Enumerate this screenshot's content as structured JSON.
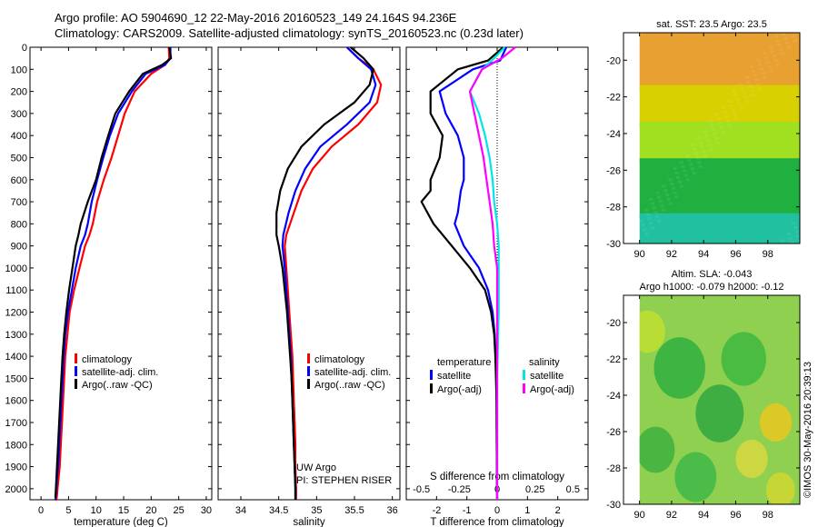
{
  "title": {
    "line1": "Argo profile: AO 5904690_12 22-May-2016 20160523_149 24.164S 94.236E",
    "line2": "Climatology: CARS2009. Satellite-adjusted climatology: synTS_20160523.nc (0.23d later)"
  },
  "side_label": "©IMOS 30-May-2016 20:39:13",
  "colors": {
    "red": "#ff0000",
    "blue": "#0000ff",
    "black": "#000000",
    "cyan": "#00e5e5",
    "magenta": "#ff00ff"
  },
  "chart_data": [
    {
      "type": "line",
      "name": "temperature-profile",
      "xlabel": "temperature (deg C)",
      "xlim": [
        -2,
        31
      ],
      "ylim": [
        2050,
        0
      ],
      "xticks": [
        0,
        5,
        10,
        15,
        20,
        25,
        30
      ],
      "yticks": [
        0,
        100,
        200,
        300,
        400,
        500,
        600,
        700,
        800,
        900,
        1000,
        1100,
        1200,
        1300,
        1400,
        1500,
        1600,
        1700,
        1800,
        1900,
        2000
      ],
      "legend": {
        "position": "lower-center",
        "entries": [
          "climatology",
          "satellite-adj. clim.",
          "Argo(..raw -QC)"
        ]
      },
      "series": [
        {
          "name": "climatology",
          "color": "#ff0000",
          "x": [
            23.2,
            23.3,
            22.5,
            20,
            17,
            15.2,
            14,
            12.8,
            11.4,
            10.2,
            9.4,
            8.8,
            8,
            7,
            6,
            5.2,
            4.8,
            4.4,
            4.2,
            4,
            3.8,
            3.6,
            3.4,
            3.2,
            3,
            2.9,
            2.8,
            2.7,
            2.6,
            2.6
          ],
          "y": [
            0,
            50,
            80,
            120,
            200,
            300,
            400,
            500,
            600,
            700,
            800,
            850,
            900,
            1000,
            1100,
            1200,
            1300,
            1400,
            1500,
            1600,
            1700,
            1800,
            1900,
            1950,
            2000,
            2030,
            2050,
            2050,
            2050,
            2050
          ]
        },
        {
          "name": "satellite-adj. clim.",
          "color": "#0000ff",
          "x": [
            23.5,
            23.5,
            22.5,
            19,
            16.5,
            14,
            12.5,
            11.3,
            10.2,
            9.2,
            8.5,
            8,
            7.2,
            6.3,
            5.6,
            4.9,
            4.4,
            4.1,
            3.9,
            3.7,
            3.5,
            3.3,
            3.1,
            2.9,
            2.8,
            2.7,
            2.6
          ],
          "y": [
            0,
            50,
            80,
            120,
            200,
            300,
            400,
            500,
            600,
            700,
            800,
            850,
            900,
            1000,
            1100,
            1200,
            1300,
            1400,
            1500,
            1600,
            1700,
            1800,
            1900,
            1950,
            2000,
            2030,
            2050
          ]
        },
        {
          "name": "Argo(..raw -QC)",
          "color": "#000000",
          "x": [
            23.3,
            23.6,
            22,
            18.5,
            16,
            13.5,
            12.2,
            11,
            10,
            8.5,
            7.2,
            6.8,
            6.3,
            5.7,
            5.1,
            4.6,
            4.2,
            3.9,
            3.7,
            3.5,
            3.3,
            3.1,
            2.9,
            2.8,
            2.7,
            2.6
          ],
          "y": [
            0,
            50,
            80,
            120,
            200,
            300,
            400,
            500,
            600,
            700,
            800,
            850,
            900,
            1000,
            1100,
            1200,
            1300,
            1400,
            1500,
            1600,
            1700,
            1800,
            1900,
            1950,
            2000,
            2040
          ]
        }
      ]
    },
    {
      "type": "line",
      "name": "salinity-profile",
      "xlabel": "salinity",
      "xlim": [
        33.7,
        36.1
      ],
      "ylim": [
        2050,
        0
      ],
      "xticks": [
        34,
        34.5,
        35,
        35.5,
        36
      ],
      "legend": {
        "position": "lower-right",
        "entries": [
          "climatology",
          "satellite-adj. clim.",
          "Argo(..raw -QC)"
        ]
      },
      "annotation": [
        "UW Argo",
        "PI: STEPHEN RISER"
      ],
      "series": [
        {
          "name": "climatology",
          "color": "#ff0000",
          "x": [
            35.4,
            35.55,
            35.75,
            35.85,
            35.8,
            35.55,
            35.2,
            34.95,
            34.8,
            34.7,
            34.6,
            34.58,
            34.6,
            34.62,
            34.64,
            34.66,
            34.68,
            34.69,
            34.7,
            34.71,
            34.72,
            34.72,
            34.73,
            34.73
          ],
          "y": [
            0,
            50,
            100,
            170,
            250,
            350,
            450,
            550,
            650,
            750,
            850,
            900,
            1000,
            1100,
            1200,
            1300,
            1400,
            1500,
            1600,
            1700,
            1800,
            1900,
            2000,
            2050
          ]
        },
        {
          "name": "satellite-adj. clim.",
          "color": "#0000ff",
          "x": [
            35.4,
            35.55,
            35.72,
            35.78,
            35.7,
            35.4,
            35.05,
            34.85,
            34.72,
            34.63,
            34.56,
            34.55,
            34.58,
            34.6,
            34.62,
            34.64,
            34.66,
            34.67,
            34.68,
            34.69,
            34.7,
            34.71,
            34.72,
            34.72
          ],
          "y": [
            0,
            50,
            100,
            170,
            250,
            350,
            450,
            550,
            650,
            750,
            850,
            900,
            1000,
            1100,
            1200,
            1300,
            1400,
            1500,
            1600,
            1700,
            1800,
            1900,
            2000,
            2050
          ]
        },
        {
          "name": "Argo(..raw -QC)",
          "color": "#000000",
          "x": [
            35.45,
            35.62,
            35.75,
            35.7,
            35.5,
            35.1,
            34.8,
            34.62,
            34.52,
            34.47,
            34.47,
            34.5,
            34.55,
            34.58,
            34.61,
            34.63,
            34.65,
            34.67,
            34.68,
            34.69,
            34.7,
            34.71,
            34.72,
            34.72
          ],
          "y": [
            0,
            50,
            100,
            170,
            250,
            350,
            450,
            550,
            650,
            750,
            850,
            900,
            1000,
            1100,
            1200,
            1300,
            1400,
            1500,
            1600,
            1700,
            1800,
            1900,
            2000,
            2050
          ]
        }
      ]
    },
    {
      "type": "line",
      "name": "difference-profile",
      "xlabel": "T difference from climatology",
      "xlabel2": "S difference from climatology",
      "xlim": [
        -3,
        3
      ],
      "xlim_salinity": [
        -0.6,
        0.6
      ],
      "ylim": [
        2050,
        0
      ],
      "xticks": [
        -2,
        -1,
        0,
        1,
        2
      ],
      "xticks_salinity": [
        "-0.5",
        "-0.25",
        "0",
        "0.25",
        "0.5"
      ],
      "legend": {
        "position": "lower-center",
        "titles": [
          "temperature",
          "salinity"
        ],
        "entries": [
          "satellite",
          "Argo(-adj)",
          "satellite",
          "Argo(-adj)"
        ]
      },
      "series": [
        {
          "name": "temperature satellite",
          "color": "#0000ff",
          "scale": "T",
          "x": [
            0.3,
            0.1,
            -0.8,
            -1.9,
            -1.7,
            -1.3,
            -1.1,
            -1.1,
            -1.2,
            -1.3,
            -1.4,
            -1.1,
            -0.6,
            -0.3,
            -0.15,
            -0.08,
            -0.05,
            -0.03,
            -0.02,
            -0.01,
            -0.01,
            0
          ],
          "y": [
            0,
            60,
            100,
            200,
            300,
            400,
            500,
            600,
            650,
            750,
            800,
            900,
            1000,
            1100,
            1200,
            1300,
            1400,
            1500,
            1600,
            1700,
            1900,
            2050
          ]
        },
        {
          "name": "temperature Argo(-adj)",
          "color": "#000000",
          "scale": "T",
          "x": [
            0.2,
            -0.3,
            -1.3,
            -2.2,
            -2.2,
            -1.8,
            -1.9,
            -2.2,
            -2.2,
            -2.5,
            -2.1,
            -1.5,
            -0.9,
            -0.4,
            -0.2,
            -0.1,
            -0.06,
            -0.04,
            -0.02,
            -0.02,
            -0.01,
            0
          ],
          "y": [
            0,
            60,
            100,
            200,
            300,
            400,
            500,
            600,
            650,
            700,
            800,
            900,
            1000,
            1100,
            1200,
            1300,
            1400,
            1500,
            1600,
            1700,
            1900,
            2050
          ]
        },
        {
          "name": "salinity satellite",
          "color": "#00e5e5",
          "scale": "S",
          "x": [
            0.05,
            -0.02,
            -0.1,
            -0.18,
            -0.12,
            -0.08,
            -0.05,
            -0.03,
            -0.02,
            0,
            0.01,
            0.01,
            0.01,
            0,
            0,
            0
          ],
          "y": [
            0,
            50,
            100,
            200,
            300,
            400,
            500,
            600,
            700,
            800,
            900,
            1000,
            1200,
            1500,
            1800,
            2050
          ]
        },
        {
          "name": "salinity Argo(-adj)",
          "color": "#ff00ff",
          "scale": "S",
          "x": [
            0.12,
            0.03,
            -0.1,
            -0.18,
            -0.15,
            -0.12,
            -0.09,
            -0.07,
            -0.05,
            -0.03,
            -0.02,
            0,
            0,
            0,
            0
          ],
          "y": [
            0,
            50,
            100,
            200,
            300,
            400,
            500,
            600,
            700,
            800,
            900,
            1000,
            1300,
            1700,
            2050
          ]
        }
      ]
    },
    {
      "type": "heatmap",
      "name": "sst-map",
      "title": "sat. SST: 23.5 Argo: 23.5",
      "xlim": [
        89,
        100
      ],
      "ylim": [
        -30,
        -18.5
      ],
      "xticks": [
        90,
        92,
        94,
        96,
        98
      ],
      "yticks": [
        -20,
        -22,
        -24,
        -26,
        -28,
        -30
      ],
      "bands": [
        {
          "lat_top": -18.5,
          "lat_bottom": -21.5,
          "color": "#e8a030"
        },
        {
          "lat_top": -21.5,
          "lat_bottom": -23.5,
          "color": "#d8d000"
        },
        {
          "lat_top": -23.5,
          "lat_bottom": -25.5,
          "color": "#a0e020"
        },
        {
          "lat_top": -25.5,
          "lat_bottom": -28.5,
          "color": "#20b040"
        },
        {
          "lat_top": -28.5,
          "lat_bottom": -30,
          "color": "#20c0a0"
        }
      ]
    },
    {
      "type": "heatmap",
      "name": "sla-map",
      "title": [
        "Altim. SLA: -0.043",
        "Argo h1000: -0.079 h2000: -0.12"
      ],
      "xlim": [
        89,
        100
      ],
      "ylim": [
        -30,
        -18.5
      ],
      "xticks": [
        90,
        92,
        94,
        96,
        98
      ],
      "yticks": [
        -20,
        -22,
        -24,
        -26,
        -28,
        -30
      ],
      "base_color": "#90d050",
      "blobs": [
        {
          "lon": 92.5,
          "lat": -22.5,
          "r": 1.6,
          "color": "#30b040"
        },
        {
          "lon": 96.5,
          "lat": -22.0,
          "r": 1.4,
          "color": "#40b840"
        },
        {
          "lon": 95.0,
          "lat": -25.0,
          "r": 1.5,
          "color": "#30a840"
        },
        {
          "lon": 91.0,
          "lat": -27.0,
          "r": 1.2,
          "color": "#40b040"
        },
        {
          "lon": 93.5,
          "lat": -28.5,
          "r": 1.3,
          "color": "#40b848"
        },
        {
          "lon": 98.5,
          "lat": -25.5,
          "r": 1.0,
          "color": "#e8c820"
        },
        {
          "lon": 97.0,
          "lat": -27.5,
          "r": 1.0,
          "color": "#d8d840"
        },
        {
          "lon": 90.5,
          "lat": -20.5,
          "r": 1.1,
          "color": "#c0e030"
        },
        {
          "lon": 98.8,
          "lat": -29.2,
          "r": 0.9,
          "color": "#d0d830"
        }
      ]
    }
  ]
}
